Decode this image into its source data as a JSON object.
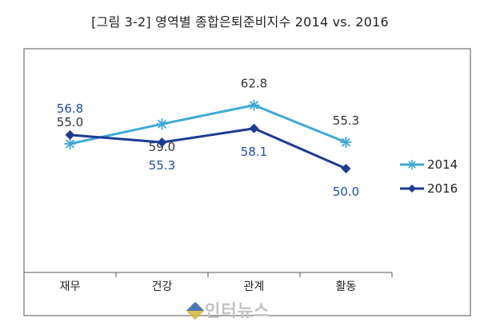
{
  "figure": {
    "title": "[그림 3-2] 영역별 종합은퇴준비지수 2014 vs. 2016"
  },
  "watermark": {
    "text": "인터뉴스"
  },
  "chart_data": {
    "type": "line",
    "title": "[그림 3-2] 영역별 종합은퇴준비지수 2014 vs. 2016",
    "xlabel": "",
    "ylabel": "",
    "categories": [
      "재무",
      "건강",
      "관계",
      "활동"
    ],
    "series": [
      {
        "name": "2014",
        "values": [
          55.0,
          59.0,
          62.8,
          55.3
        ],
        "color": "#3ea9d4",
        "marker": "asterisk",
        "label_color": "#333333"
      },
      {
        "name": "2016",
        "values": [
          56.8,
          55.3,
          58.1,
          50.0
        ],
        "color": "#1f3a93",
        "marker": "diamond",
        "label_color": "#1f4fa8"
      }
    ],
    "ylim": [
      0,
      80
    ],
    "grid": false,
    "legend": "right"
  }
}
